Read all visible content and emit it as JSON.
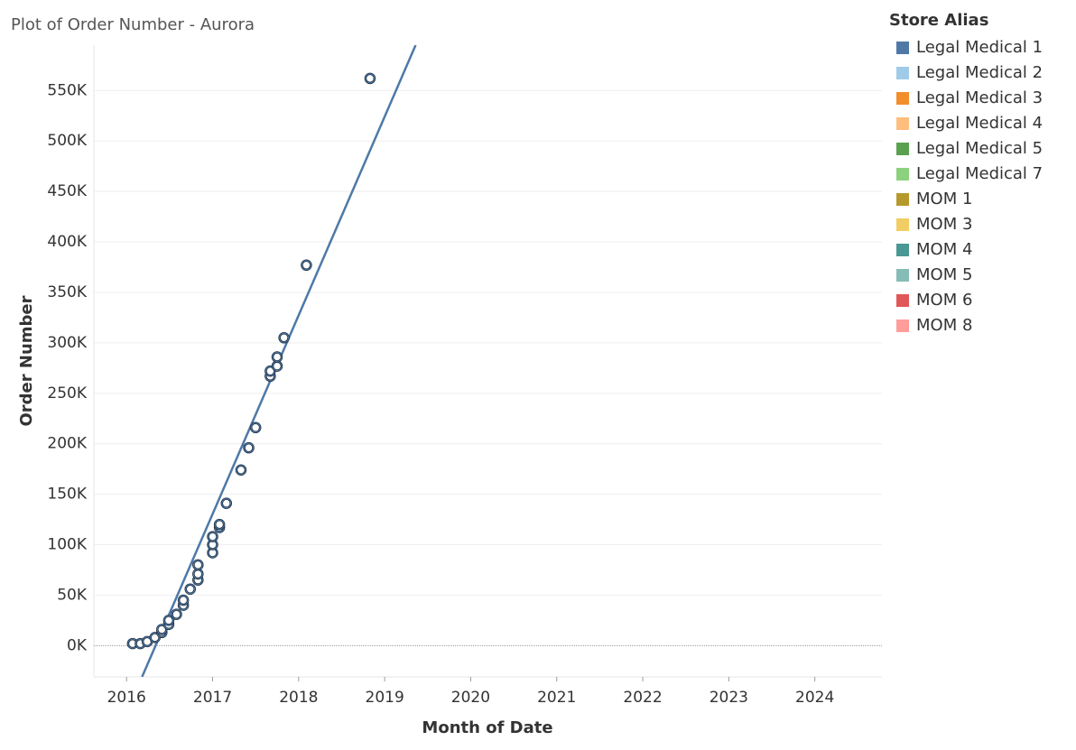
{
  "chart_data": {
    "type": "scatter",
    "title": "Plot of Order Number - Aurora",
    "x_label": "Month of Date",
    "y_label": "Order Number",
    "legend_title": "Store Alias",
    "xlim": [
      2015.62,
      2024.78
    ],
    "xticks": [
      2016,
      2017,
      2018,
      2019,
      2020,
      2021,
      2022,
      2023,
      2024
    ],
    "ylim": [
      -31000,
      595000
    ],
    "yticks": [
      {
        "value": 0,
        "label": "0K"
      },
      {
        "value": 50000,
        "label": "50K"
      },
      {
        "value": 100000,
        "label": "100K"
      },
      {
        "value": 150000,
        "label": "150K"
      },
      {
        "value": 200000,
        "label": "200K"
      },
      {
        "value": 250000,
        "label": "250K"
      },
      {
        "value": 300000,
        "label": "300K"
      },
      {
        "value": 350000,
        "label": "350K"
      },
      {
        "value": 400000,
        "label": "400K"
      },
      {
        "value": 450000,
        "label": "450K"
      },
      {
        "value": 500000,
        "label": "500K"
      },
      {
        "value": 550000,
        "label": "550K"
      }
    ],
    "grid": true,
    "trend_line": {
      "color": "#4e79a7",
      "x": [
        2016.18,
        2019.36
      ],
      "y": [
        -31000,
        595000
      ]
    },
    "series": [
      {
        "name": "Legal Medical 1",
        "color": "#4e79a7",
        "x": [
          2016.07,
          2016.16,
          2016.24,
          2016.33,
          2016.41,
          2016.41,
          2016.49,
          2016.49,
          2016.58,
          2016.66,
          2016.66,
          2016.74,
          2016.83,
          2016.83,
          2016.83,
          2017.0,
          2017.0,
          2017.0,
          2017.08,
          2017.08,
          2017.16,
          2017.33,
          2017.42,
          2017.5,
          2017.67,
          2017.67,
          2017.75,
          2017.75,
          2017.83,
          2018.09,
          2018.83
        ],
        "values": [
          2000,
          2000,
          4000,
          8000,
          13000,
          16000,
          21000,
          25000,
          31000,
          40000,
          45000,
          56000,
          65000,
          71000,
          80000,
          92000,
          100000,
          108000,
          117000,
          120000,
          141000,
          174000,
          196000,
          216000,
          267000,
          272000,
          277000,
          286000,
          305000,
          377000,
          562000
        ]
      },
      {
        "name": "Legal Medical 2",
        "color": "#a0cbe8",
        "x": [],
        "values": []
      },
      {
        "name": "Legal Medical 3",
        "color": "#f28e2b",
        "x": [],
        "values": []
      },
      {
        "name": "Legal Medical 4",
        "color": "#ffbe7d",
        "x": [],
        "values": []
      },
      {
        "name": "Legal Medical 5",
        "color": "#59a14f",
        "x": [],
        "values": []
      },
      {
        "name": "Legal Medical 7",
        "color": "#8cd17d",
        "x": [],
        "values": []
      },
      {
        "name": "MOM 1",
        "color": "#b6992d",
        "x": [],
        "values": []
      },
      {
        "name": "MOM 3",
        "color": "#f1ce63",
        "x": [],
        "values": []
      },
      {
        "name": "MOM 4",
        "color": "#499894",
        "x": [],
        "values": []
      },
      {
        "name": "MOM 5",
        "color": "#86bcb6",
        "x": [],
        "values": []
      },
      {
        "name": "MOM 6",
        "color": "#e15759",
        "x": [],
        "values": []
      },
      {
        "name": "MOM 8",
        "color": "#ff9d9a",
        "x": [],
        "values": []
      }
    ]
  }
}
